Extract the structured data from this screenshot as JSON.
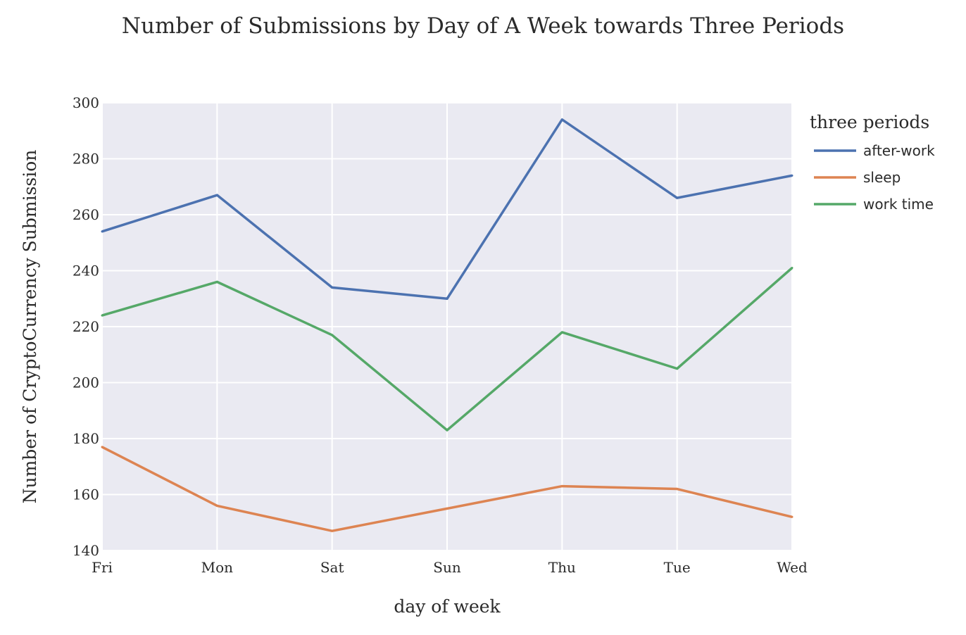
{
  "chart_data": {
    "type": "line",
    "title": "Number of Submissions by Day of A Week towards Three Periods",
    "xlabel": "day of week",
    "ylabel": "Number of CryptoCurrency Submission",
    "categories": [
      "Fri",
      "Mon",
      "Sat",
      "Sun",
      "Thu",
      "Tue",
      "Wed"
    ],
    "ylim": [
      140,
      300
    ],
    "yticks": [
      "140",
      "160",
      "180",
      "200",
      "220",
      "240",
      "260",
      "280",
      "300"
    ],
    "grid": true,
    "legend_title": "three periods",
    "legend_position": "right",
    "series": [
      {
        "name": "after-work",
        "color": "#4c72b0",
        "values": [
          254,
          267,
          234,
          230,
          294,
          266,
          274
        ]
      },
      {
        "name": "sleep",
        "color": "#dd8452",
        "values": [
          177,
          156,
          147,
          155,
          163,
          162,
          152
        ]
      },
      {
        "name": "work time",
        "color": "#55a868",
        "values": [
          224,
          236,
          217,
          183,
          218,
          205,
          241
        ]
      }
    ],
    "plot_background": "#eaeaf2",
    "grid_color": "#ffffff"
  }
}
